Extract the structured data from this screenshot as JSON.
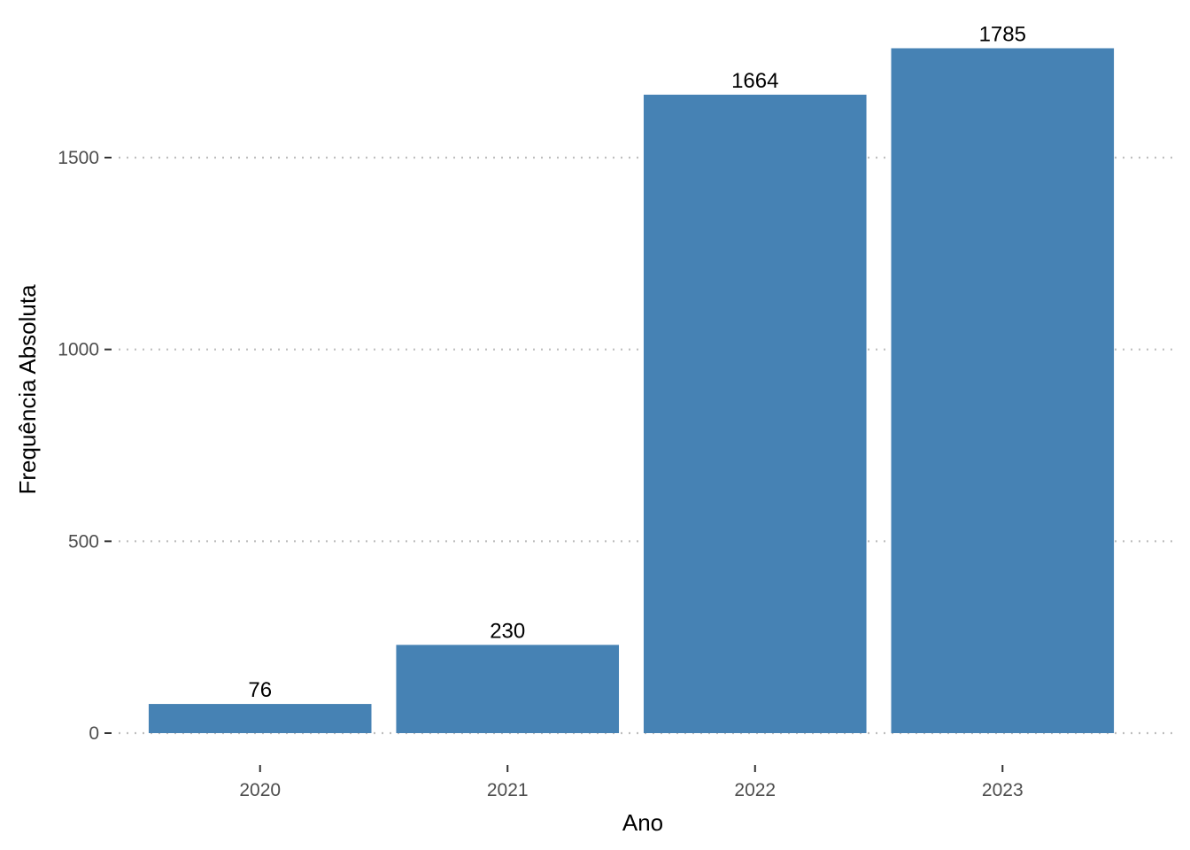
{
  "chart_data": {
    "type": "bar",
    "title": "",
    "xlabel": "Ano",
    "ylabel": "Frequência Absoluta",
    "categories": [
      "2020",
      "2021",
      "2022",
      "2023"
    ],
    "values": [
      76,
      230,
      1664,
      1785
    ],
    "data_labels": [
      "76",
      "230",
      "1664",
      "1785"
    ],
    "yticks": [
      0,
      500,
      1000,
      1500
    ],
    "ytick_labels": [
      "0",
      "500",
      "1000",
      "1500"
    ],
    "ylim": [
      0,
      1785
    ],
    "grid": "horizontal-dotted",
    "legend": "none",
    "colors": {
      "bar": "#4682b4",
      "grid": "#bebebe",
      "tick": "#4d4d4d",
      "text": "#000000"
    }
  }
}
